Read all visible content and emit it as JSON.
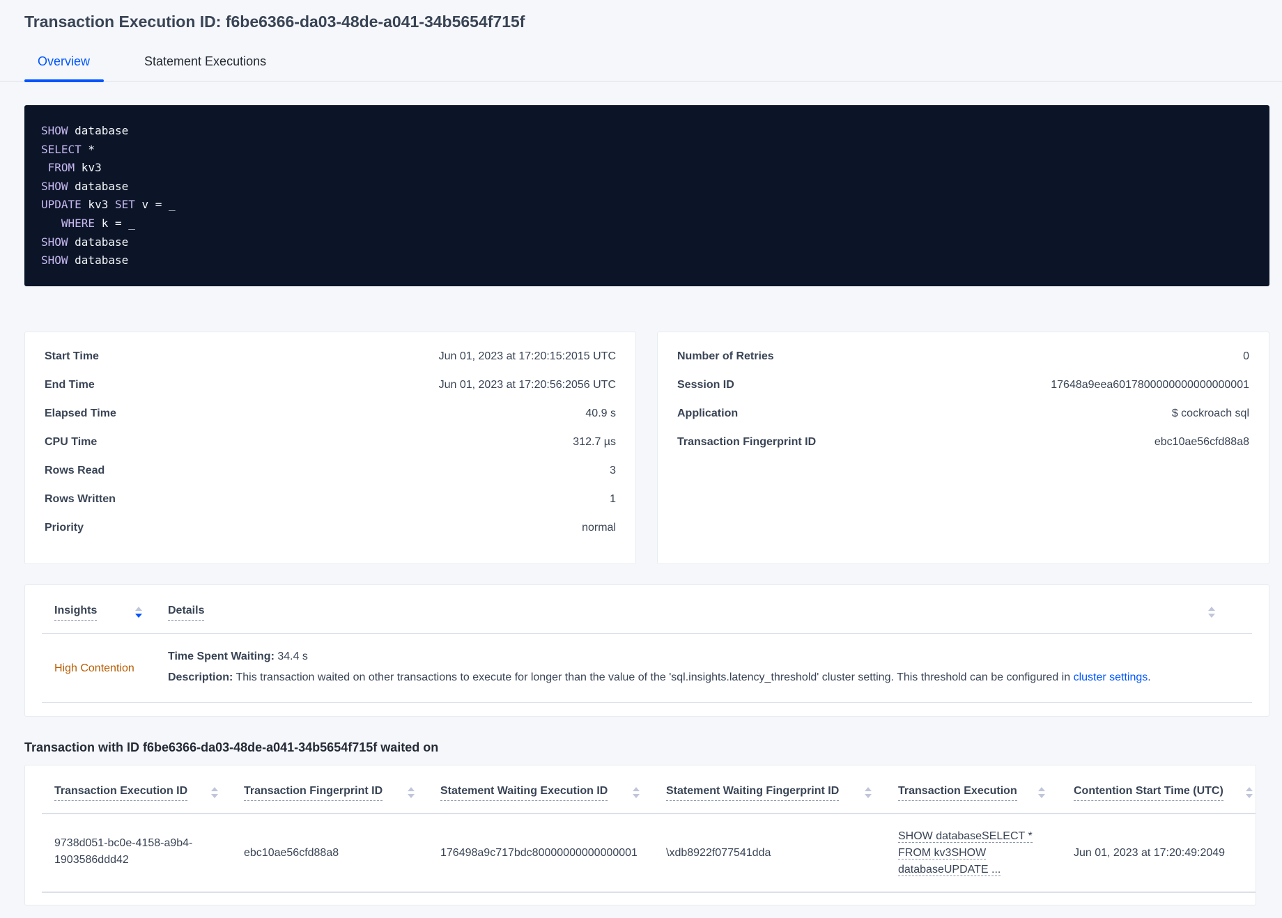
{
  "header": {
    "title": "Transaction Execution ID: f6be6366-da03-48de-a041-34b5654f715f"
  },
  "tabs": [
    {
      "label": "Overview",
      "active": true
    },
    {
      "label": "Statement Executions",
      "active": false
    }
  ],
  "sql_lines": [
    [
      {
        "t": "SHOW",
        "kw": true
      },
      {
        "t": " database"
      }
    ],
    [
      {
        "t": "SELECT",
        "kw": true
      },
      {
        "t": " *"
      }
    ],
    [
      {
        "t": " FROM",
        "kw": true
      },
      {
        "t": " kv3"
      }
    ],
    [
      {
        "t": "SHOW",
        "kw": true
      },
      {
        "t": " database"
      }
    ],
    [
      {
        "t": "UPDATE",
        "kw": true
      },
      {
        "t": " kv3 "
      },
      {
        "t": "SET",
        "kw": true
      },
      {
        "t": " v = _"
      }
    ],
    [
      {
        "t": "   WHERE",
        "kw": true
      },
      {
        "t": " k = _"
      }
    ],
    [
      {
        "t": "SHOW",
        "kw": true
      },
      {
        "t": " database"
      }
    ],
    [
      {
        "t": "SHOW",
        "kw": true
      },
      {
        "t": " database"
      }
    ]
  ],
  "summary_left": [
    {
      "label": "Start Time",
      "value": "Jun 01, 2023 at 17:20:15:2015 UTC"
    },
    {
      "label": "End Time",
      "value": "Jun 01, 2023 at 17:20:56:2056 UTC"
    },
    {
      "label": "Elapsed Time",
      "value": "40.9 s"
    },
    {
      "label": "CPU Time",
      "value": "312.7 µs"
    },
    {
      "label": "Rows Read",
      "value": "3"
    },
    {
      "label": "Rows Written",
      "value": "1"
    },
    {
      "label": "Priority",
      "value": "normal"
    }
  ],
  "summary_right": [
    {
      "label": "Number of Retries",
      "value": "0"
    },
    {
      "label": "Session ID",
      "value": "17648a9eea6017800000000000000001"
    },
    {
      "label": "Application",
      "value": "$ cockroach sql"
    },
    {
      "label": "Transaction Fingerprint ID",
      "value": "ebc10ae56cfd88a8",
      "link": true
    }
  ],
  "insights": {
    "headers": {
      "insights": "Insights",
      "details": "Details"
    },
    "row": {
      "insight": "High Contention",
      "time_label": "Time Spent Waiting:",
      "time_value": " 34.4 s",
      "desc_label": "Description:",
      "desc_text": " This transaction waited on other transactions to execute for longer than the value of the 'sql.insights.latency_threshold' cluster setting. This threshold can be configured in ",
      "desc_link": "cluster settings",
      "desc_end": "."
    },
    "colors": {
      "insight": "#b85c00"
    }
  },
  "waited_on": {
    "heading": "Transaction with ID f6be6366-da03-48de-a041-34b5654f715f waited on",
    "columns": [
      "Transaction Execution ID",
      "Transaction Fingerprint ID",
      "Statement Waiting Execution ID",
      "Statement Waiting Fingerprint ID",
      "Transaction Execution",
      "Contention Start Time (UTC)"
    ],
    "rows": [
      {
        "txn_exec_id_1": "9738d051-bc0e-4158-a9b4-",
        "txn_exec_id_2": "1903586ddd42",
        "txn_fp_id": "ebc10ae56cfd88a8",
        "stmt_exec_id": "176498a9c717bdc80000000000000001",
        "stmt_fp_id": "\\xdb8922f077541dda",
        "txn_exec_1": "SHOW databaseSELECT *",
        "txn_exec_2": "FROM kv3SHOW",
        "txn_exec_3": "databaseUPDATE ...",
        "contention_start": "Jun 01, 2023 at 17:20:49:2049"
      }
    ]
  }
}
